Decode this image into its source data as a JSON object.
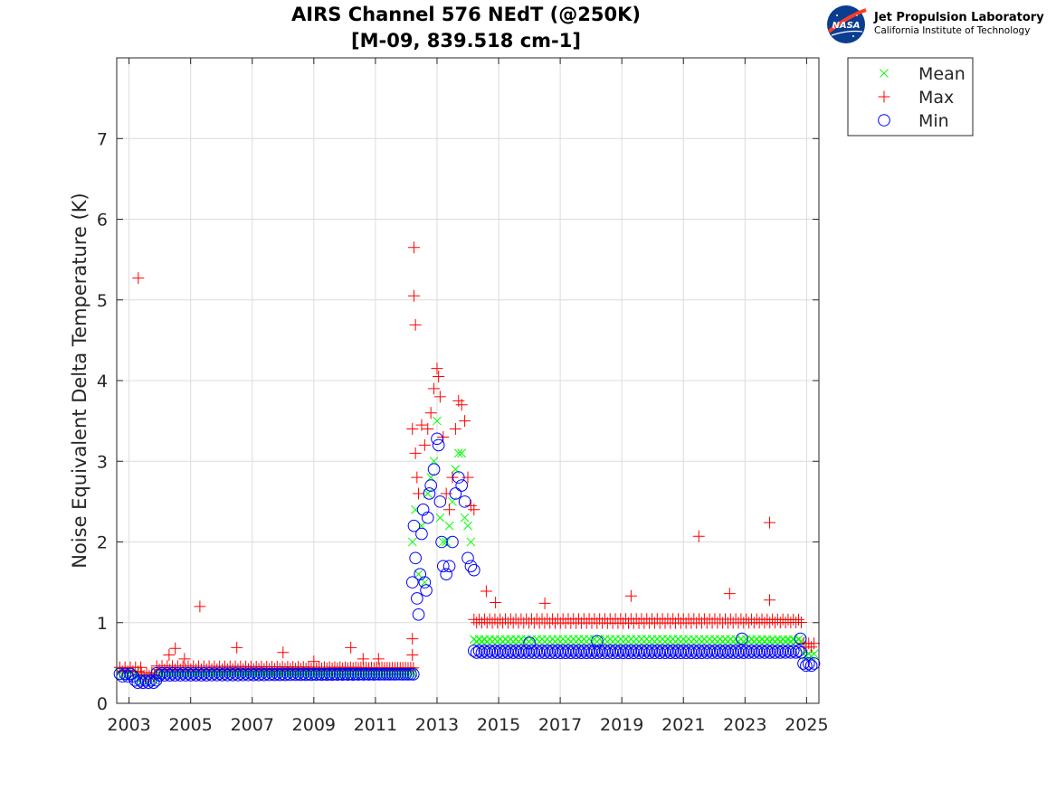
{
  "branding": {
    "org_name": "Jet Propulsion Laboratory",
    "org_sub": "California Institute of Technology",
    "logo_text": "NASA"
  },
  "chart_data": {
    "type": "scatter",
    "title_line1": "AIRS Channel 576 NEdT (@250K)",
    "title_line2": "[M-09, 839.518 cm-1]",
    "xlabel": "",
    "ylabel": "Noise Equivalent Delta Temperature (K)",
    "xlim": [
      2002.6,
      2025.4
    ],
    "ylim": [
      0,
      8
    ],
    "x_ticks": [
      2003,
      2005,
      2007,
      2009,
      2011,
      2013,
      2015,
      2017,
      2019,
      2021,
      2023,
      2025
    ],
    "x_tick_labels": [
      "2003",
      "2005",
      "2007",
      "2009",
      "2011",
      "2013",
      "2015",
      "2017",
      "2019",
      "2021",
      "2023",
      "2025"
    ],
    "y_ticks": [
      0,
      1,
      2,
      3,
      4,
      5,
      6,
      7
    ],
    "y_tick_labels": [
      "0",
      "1",
      "2",
      "3",
      "4",
      "5",
      "6",
      "7"
    ],
    "grid": true,
    "legend_position": "outside-top-right",
    "series": [
      {
        "name": "Mean",
        "marker": "x",
        "color": "#00ff00",
        "segments": [
          {
            "x0": 2002.7,
            "x1": 2003.3,
            "y": 0.37
          },
          {
            "x0": 2003.3,
            "x1": 2003.9,
            "y": 0.3
          },
          {
            "x0": 2003.9,
            "x1": 2012.3,
            "y": 0.38
          },
          {
            "x0": 2014.2,
            "x1": 2024.9,
            "y": 0.78
          },
          {
            "x0": 2024.9,
            "x1": 2025.3,
            "y": 0.6
          }
        ],
        "points": [
          [
            2012.2,
            2.0
          ],
          [
            2012.3,
            2.4
          ],
          [
            2012.4,
            1.6
          ],
          [
            2012.5,
            2.2
          ],
          [
            2012.6,
            1.5
          ],
          [
            2012.7,
            2.6
          ],
          [
            2012.8,
            2.8
          ],
          [
            2012.9,
            3.0
          ],
          [
            2013.0,
            3.5
          ],
          [
            2013.1,
            2.3
          ],
          [
            2013.2,
            2.0
          ],
          [
            2013.3,
            2.0
          ],
          [
            2013.4,
            2.2
          ],
          [
            2013.5,
            2.5
          ],
          [
            2013.6,
            2.9
          ],
          [
            2013.7,
            3.1
          ],
          [
            2013.8,
            3.1
          ],
          [
            2013.9,
            2.3
          ],
          [
            2014.0,
            2.2
          ],
          [
            2014.1,
            2.0
          ]
        ]
      },
      {
        "name": "Max",
        "marker": "+",
        "color": "#ff0000",
        "segments": [
          {
            "x0": 2002.7,
            "x1": 2003.4,
            "y": 0.42
          },
          {
            "x0": 2003.4,
            "x1": 2003.9,
            "y": 0.36
          },
          {
            "x0": 2003.9,
            "x1": 2012.3,
            "y": 0.44
          },
          {
            "x0": 2014.2,
            "x1": 2024.9,
            "y": 1.02
          },
          {
            "x0": 2024.9,
            "x1": 2025.3,
            "y": 0.72
          }
        ],
        "points": [
          [
            2003.3,
            5.27
          ],
          [
            2004.3,
            0.6
          ],
          [
            2004.5,
            0.68
          ],
          [
            2004.8,
            0.55
          ],
          [
            2005.3,
            1.2
          ],
          [
            2006.5,
            0.69
          ],
          [
            2008.0,
            0.63
          ],
          [
            2009.0,
            0.52
          ],
          [
            2010.2,
            0.69
          ],
          [
            2010.6,
            0.55
          ],
          [
            2011.1,
            0.55
          ],
          [
            2012.2,
            0.6
          ],
          [
            2012.2,
            0.8
          ],
          [
            2012.25,
            5.65
          ],
          [
            2012.25,
            5.05
          ],
          [
            2012.3,
            4.69
          ],
          [
            2012.2,
            3.4
          ],
          [
            2012.3,
            3.1
          ],
          [
            2012.35,
            2.8
          ],
          [
            2012.4,
            2.6
          ],
          [
            2012.5,
            3.45
          ],
          [
            2012.6,
            3.2
          ],
          [
            2012.7,
            3.4
          ],
          [
            2012.8,
            3.6
          ],
          [
            2012.9,
            3.9
          ],
          [
            2013.0,
            4.15
          ],
          [
            2013.05,
            4.05
          ],
          [
            2013.1,
            3.8
          ],
          [
            2013.2,
            3.3
          ],
          [
            2013.3,
            2.6
          ],
          [
            2013.4,
            2.4
          ],
          [
            2013.5,
            2.8
          ],
          [
            2013.6,
            3.4
          ],
          [
            2013.7,
            3.75
          ],
          [
            2013.8,
            3.7
          ],
          [
            2013.9,
            3.5
          ],
          [
            2014.0,
            2.8
          ],
          [
            2014.1,
            2.45
          ],
          [
            2014.2,
            2.4
          ],
          [
            2014.6,
            1.39
          ],
          [
            2014.9,
            1.25
          ],
          [
            2016.5,
            1.24
          ],
          [
            2019.3,
            1.33
          ],
          [
            2021.5,
            2.07
          ],
          [
            2022.5,
            1.36
          ],
          [
            2023.8,
            2.24
          ],
          [
            2023.8,
            1.28
          ]
        ]
      },
      {
        "name": "Min",
        "marker": "o",
        "color": "#0000ff",
        "segments": [
          {
            "x0": 2002.7,
            "x1": 2003.2,
            "y": 0.35
          },
          {
            "x0": 2003.2,
            "x1": 2003.9,
            "y": 0.27
          },
          {
            "x0": 2003.9,
            "x1": 2012.3,
            "y": 0.36
          },
          {
            "x0": 2014.2,
            "x1": 2024.9,
            "y": 0.64
          },
          {
            "x0": 2024.9,
            "x1": 2025.3,
            "y": 0.48
          }
        ],
        "points": [
          [
            2012.2,
            1.5
          ],
          [
            2012.25,
            2.2
          ],
          [
            2012.3,
            1.8
          ],
          [
            2012.35,
            1.3
          ],
          [
            2012.4,
            1.1
          ],
          [
            2012.45,
            1.6
          ],
          [
            2012.5,
            2.1
          ],
          [
            2012.55,
            2.4
          ],
          [
            2012.6,
            1.5
          ],
          [
            2012.65,
            1.4
          ],
          [
            2012.7,
            2.3
          ],
          [
            2012.75,
            2.6
          ],
          [
            2012.8,
            2.7
          ],
          [
            2012.9,
            2.9
          ],
          [
            2013.0,
            3.28
          ],
          [
            2013.05,
            3.2
          ],
          [
            2013.1,
            2.5
          ],
          [
            2013.15,
            2.0
          ],
          [
            2013.2,
            1.7
          ],
          [
            2013.3,
            1.6
          ],
          [
            2013.4,
            1.7
          ],
          [
            2013.5,
            2.0
          ],
          [
            2013.6,
            2.6
          ],
          [
            2013.7,
            2.8
          ],
          [
            2013.8,
            2.7
          ],
          [
            2013.9,
            2.5
          ],
          [
            2014.0,
            1.8
          ],
          [
            2014.1,
            1.7
          ],
          [
            2014.2,
            1.65
          ],
          [
            2016.0,
            0.75
          ],
          [
            2018.2,
            0.77
          ],
          [
            2022.9,
            0.8
          ],
          [
            2024.8,
            0.8
          ]
        ]
      }
    ]
  }
}
